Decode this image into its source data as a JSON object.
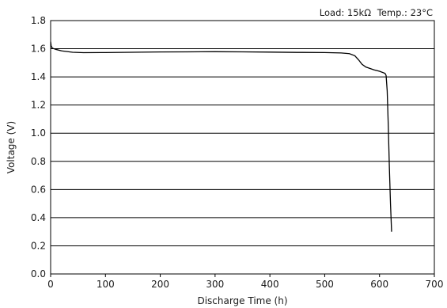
{
  "chart_data": {
    "type": "line",
    "title": "",
    "annotations": [
      "Load: 15kΩ",
      "Temp.: 23°C"
    ],
    "xlabel": "Discharge Time (h)",
    "ylabel": "Voltage (V)",
    "xlim": [
      0,
      700
    ],
    "ylim": [
      0.0,
      1.8
    ],
    "x_ticks": [
      "0",
      "100",
      "200",
      "300",
      "400",
      "500",
      "600",
      "700"
    ],
    "y_ticks": [
      "0.0",
      "0.2",
      "0.4",
      "0.6",
      "0.8",
      "1.0",
      "1.2",
      "1.4",
      "1.6",
      "1.8"
    ],
    "grid": "horizontal",
    "series": [
      {
        "color": "#000000",
        "x": [
          0,
          1,
          3,
          6,
          10,
          20,
          40,
          60,
          100,
          150,
          200,
          250,
          300,
          350,
          400,
          450,
          500,
          530,
          545,
          555,
          562,
          568,
          575,
          590,
          600,
          610,
          612,
          614,
          616,
          618,
          620,
          622
        ],
        "y": [
          1.65,
          1.62,
          1.605,
          1.6,
          1.595,
          1.585,
          1.575,
          1.572,
          1.573,
          1.575,
          1.577,
          1.578,
          1.579,
          1.578,
          1.576,
          1.574,
          1.573,
          1.57,
          1.565,
          1.55,
          1.52,
          1.49,
          1.47,
          1.45,
          1.44,
          1.425,
          1.41,
          1.3,
          1.05,
          0.75,
          0.5,
          0.3
        ]
      }
    ]
  }
}
